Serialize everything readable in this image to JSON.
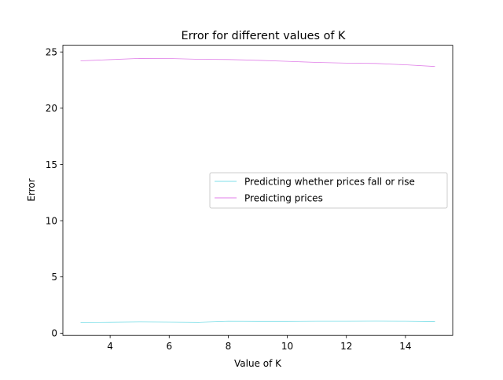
{
  "chart_data": {
    "type": "line",
    "title": "Error for different values of K",
    "xlabel": "Value of K",
    "ylabel": "Error",
    "xlim": [
      2.4,
      15.6
    ],
    "ylim": [
      -0.2,
      25.6
    ],
    "xticks": [
      4,
      6,
      8,
      10,
      12,
      14
    ],
    "yticks": [
      0,
      5,
      10,
      15,
      20,
      25
    ],
    "grid": false,
    "legend_position": "center-right",
    "x": [
      3,
      4,
      5,
      6,
      7,
      8,
      9,
      10,
      11,
      12,
      13,
      14,
      15
    ],
    "series": [
      {
        "name": "Predicting whether prices fall or rise",
        "color": "#7fdfe8",
        "values": [
          0.97,
          0.98,
          1.01,
          0.99,
          0.97,
          1.06,
          1.05,
          1.05,
          1.06,
          1.06,
          1.07,
          1.06,
          1.03
        ]
      },
      {
        "name": "Predicting prices",
        "color": "#e07fe8",
        "values": [
          24.21,
          24.32,
          24.43,
          24.42,
          24.35,
          24.33,
          24.26,
          24.17,
          24.07,
          24.01,
          23.98,
          23.86,
          23.71
        ]
      }
    ]
  }
}
